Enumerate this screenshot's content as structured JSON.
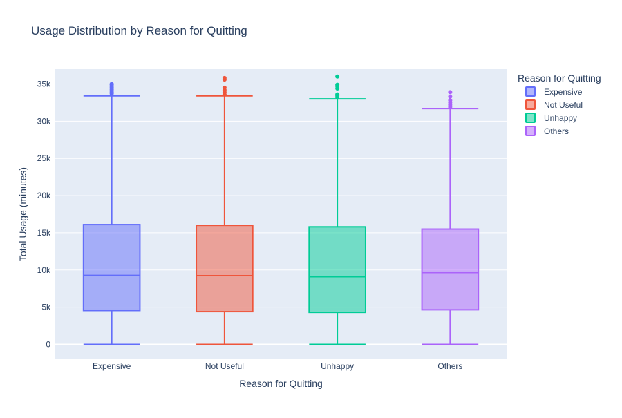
{
  "chart_data": {
    "type": "box",
    "title": "Usage Distribution by Reason for Quitting",
    "xlabel": "Reason for Quitting",
    "ylabel": "Total Usage (minutes)",
    "categories": [
      "Expensive",
      "Not Useful",
      "Unhappy",
      "Others"
    ],
    "ylim": [
      -2000,
      37000
    ],
    "yticks": [
      {
        "value": 0,
        "label": "0"
      },
      {
        "value": 5000,
        "label": "5k"
      },
      {
        "value": 10000,
        "label": "10k"
      },
      {
        "value": 15000,
        "label": "15k"
      },
      {
        "value": 20000,
        "label": "20k"
      },
      {
        "value": 25000,
        "label": "25k"
      },
      {
        "value": 30000,
        "label": "30k"
      },
      {
        "value": 35000,
        "label": "35k"
      }
    ],
    "grid": true,
    "legend": {
      "title": "Reason for Quitting",
      "placement": "top-right, outside plot"
    },
    "series": [
      {
        "name": "Expensive",
        "color": "#636efa",
        "fill": "rgba(99,110,250,0.5)",
        "min": 0,
        "q1": 4550,
        "median": 9270,
        "q3": 16100,
        "upper_fence": 33400,
        "outliers": [
          33700,
          33900,
          34100,
          34300,
          34500,
          34700,
          34900,
          35000
        ]
      },
      {
        "name": "Not Useful",
        "color": "#ef553b",
        "fill": "rgba(239,85,59,0.5)",
        "min": 0,
        "q1": 4400,
        "median": 9230,
        "q3": 16000,
        "upper_fence": 33400,
        "outliers": [
          33600,
          33900,
          34200,
          34500,
          35600,
          35800
        ]
      },
      {
        "name": "Unhappy",
        "color": "#00cc96",
        "fill": "rgba(0,204,150,0.5)",
        "min": 0,
        "q1": 4300,
        "median": 9100,
        "q3": 15800,
        "upper_fence": 33000,
        "outliers": [
          33200,
          33400,
          33600,
          34400,
          34700,
          34900,
          36000
        ]
      },
      {
        "name": "Others",
        "color": "#ab63fa",
        "fill": "rgba(171,99,250,0.5)",
        "min": 0,
        "q1": 4650,
        "median": 9650,
        "q3": 15500,
        "upper_fence": 31700,
        "outliers": [
          31900,
          32200,
          32500,
          32800,
          33300,
          33900
        ]
      }
    ]
  }
}
